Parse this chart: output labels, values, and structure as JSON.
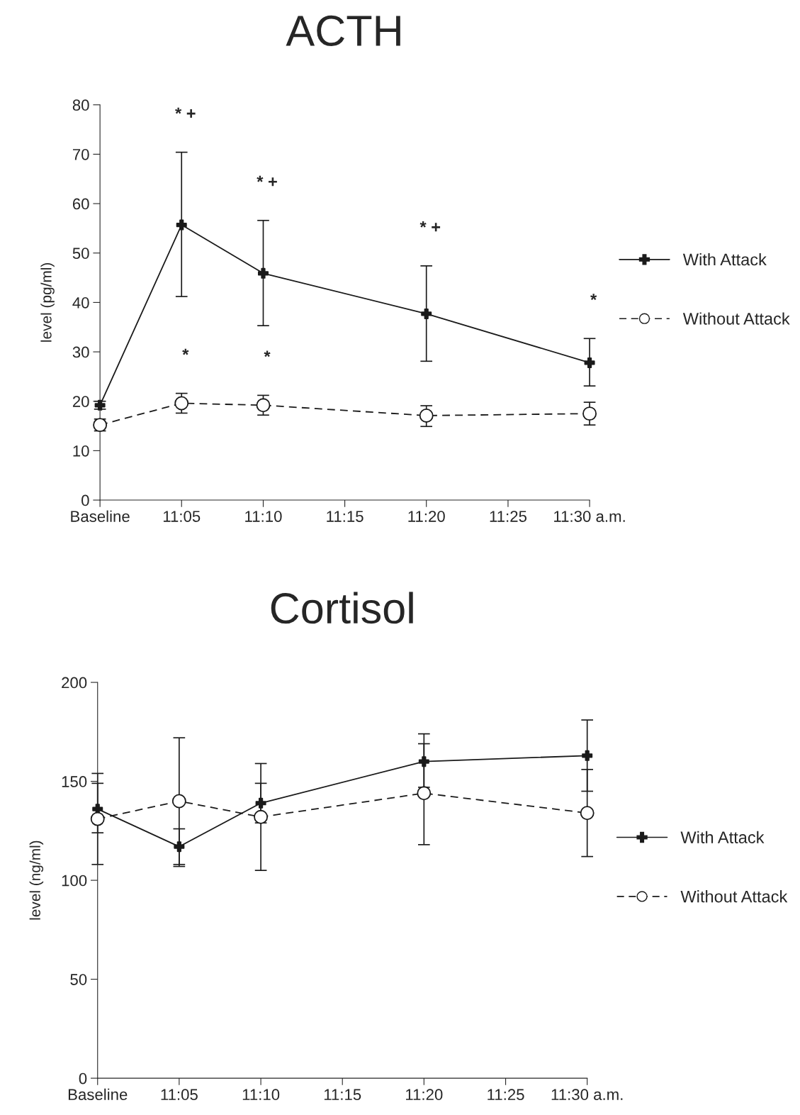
{
  "chart_data": [
    {
      "type": "line",
      "title": "ACTH",
      "ylabel": "level (pg/ml)",
      "x": [
        11,
        11.0833,
        11.1667,
        11.3333,
        11.5
      ],
      "xlim": [
        11,
        11.5
      ],
      "xticks": [
        {
          "value": 11,
          "label": "Baseline"
        },
        {
          "value": 11.0833,
          "label": "11:05"
        },
        {
          "value": 11.1667,
          "label": "11:10"
        },
        {
          "value": 11.25,
          "label": "11:15"
        },
        {
          "value": 11.3333,
          "label": "11:20"
        },
        {
          "value": 11.4167,
          "label": "11:25"
        },
        {
          "value": 11.5,
          "label": "11:30 a.m."
        }
      ],
      "ylim": [
        0,
        80
      ],
      "yticks": [
        0,
        10,
        20,
        30,
        40,
        50,
        60,
        70,
        80
      ],
      "grid": false,
      "legend": "right",
      "series": [
        {
          "name": "With Attack",
          "color": "#1a1a1a",
          "marker": "cross",
          "line_style": "solid",
          "values": [
            19.2,
            55.7,
            45.9,
            37.7,
            27.8
          ],
          "errors": [
            [
              18.4,
              20
            ],
            [
              41.2,
              70.4
            ],
            [
              35.3,
              56.6
            ],
            [
              28.1,
              47.4
            ],
            [
              23.1,
              32.7
            ]
          ]
        },
        {
          "name": "Without Attack",
          "color": "#1a1a1a",
          "marker": "circle",
          "line_style": "dashed",
          "values": [
            15.2,
            19.6,
            19.2,
            17.1,
            17.5
          ],
          "errors": [
            [
              14,
              16.4
            ],
            [
              17.6,
              21.6
            ],
            [
              17.2,
              21.2
            ],
            [
              14.9,
              19.1
            ],
            [
              15.2,
              19.8
            ]
          ]
        }
      ],
      "annotations": [
        {
          "text": "* +",
          "x": 11.0833,
          "y": 70.4
        },
        {
          "text": "* +",
          "x": 11.1667,
          "y": 56.6
        },
        {
          "text": "* +",
          "x": 11.3333,
          "y": 47.4
        },
        {
          "text": "*",
          "x": 11.5,
          "y": 32.7
        },
        {
          "text": "*",
          "x": 11.0833,
          "y": 21.6
        },
        {
          "text": "*",
          "x": 11.1667,
          "y": 21.2
        }
      ]
    },
    {
      "type": "line",
      "title": "Cortisol",
      "ylabel": "level (ng/ml)",
      "x": [
        11,
        11.0833,
        11.1667,
        11.3333,
        11.5
      ],
      "xlim": [
        11,
        11.5
      ],
      "xticks": [
        {
          "value": 11,
          "label": "Baseline"
        },
        {
          "value": 11.0833,
          "label": "11:05"
        },
        {
          "value": 11.1667,
          "label": "11:10"
        },
        {
          "value": 11.25,
          "label": "11:15"
        },
        {
          "value": 11.3333,
          "label": "11:20"
        },
        {
          "value": 11.4167,
          "label": "11:25"
        },
        {
          "value": 11.5,
          "label": "11:30 a.m."
        }
      ],
      "ylim": [
        0,
        200
      ],
      "yticks": [
        0,
        50,
        100,
        150,
        200
      ],
      "grid": false,
      "legend": "right",
      "series": [
        {
          "name": "With Attack",
          "color": "#1a1a1a",
          "marker": "cross",
          "line_style": "solid",
          "values": [
            136,
            117,
            139,
            160,
            163
          ],
          "errors": [
            [
              124,
              149
            ],
            [
              108,
              126
            ],
            [
              129,
              149
            ],
            [
              147,
              174
            ],
            [
              145,
              181
            ]
          ]
        },
        {
          "name": "Without Attack",
          "color": "#1a1a1a",
          "marker": "circle",
          "line_style": "dashed",
          "values": [
            131,
            140,
            132,
            144,
            134
          ],
          "errors": [
            [
              108,
              154
            ],
            [
              107,
              172
            ],
            [
              105,
              159
            ],
            [
              118,
              169
            ],
            [
              112,
              156
            ]
          ]
        }
      ]
    }
  ]
}
